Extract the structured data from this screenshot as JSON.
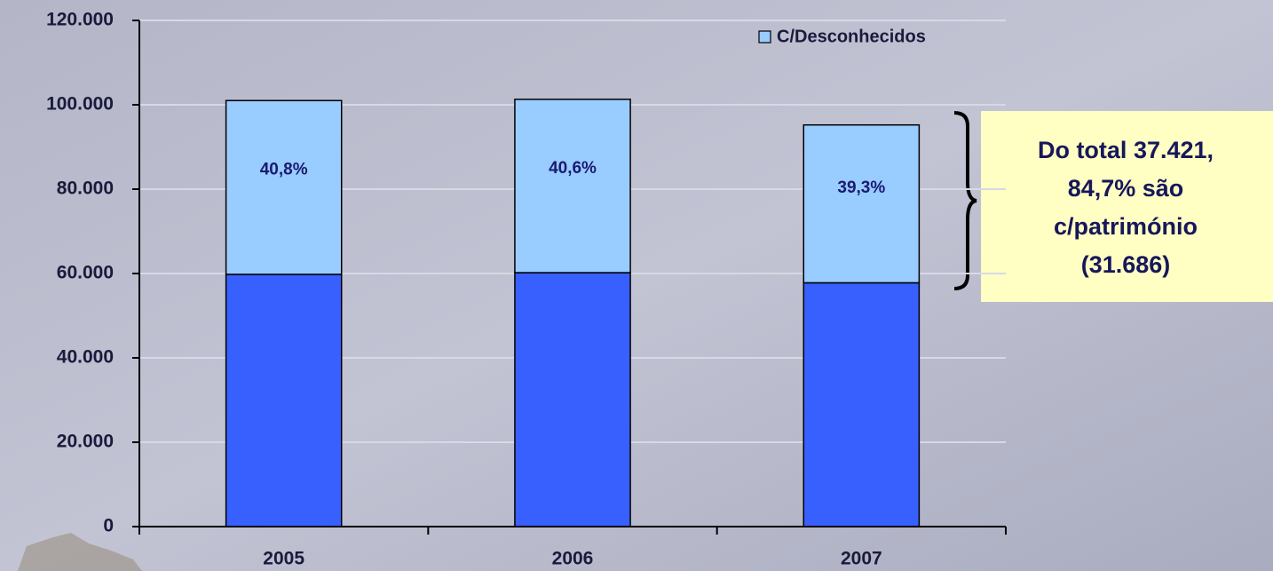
{
  "chart_data": {
    "type": "stacked_bar",
    "categories": [
      "2005",
      "2006",
      "2007"
    ],
    "series": [
      {
        "color": "#3860ff",
        "values": [
          59800,
          60200,
          57800
        ]
      },
      {
        "name": "C/Desconhecidos",
        "color": "#99ccff",
        "values": [
          41200,
          41100,
          37421
        ],
        "segment_labels": [
          "40,8%",
          "40,6%",
          "39,3%"
        ]
      }
    ],
    "ylim": [
      0,
      120000
    ],
    "yticks": [
      0,
      {
        "value": 20000,
        "label": "20.000"
      },
      {
        "value": 40000,
        "label": "40.000"
      },
      {
        "value": 60000,
        "label": "60.000"
      },
      {
        "value": 80000,
        "label": "80.000"
      },
      {
        "value": 100000,
        "label": "100.000"
      },
      {
        "value": 120000,
        "label": "120.000"
      }
    ],
    "grid": true,
    "legend": "top-right",
    "annotation": {
      "lines": [
        "Do total 37.421,",
        "84,7% são",
        "c/património",
        "(31.686)"
      ]
    }
  }
}
